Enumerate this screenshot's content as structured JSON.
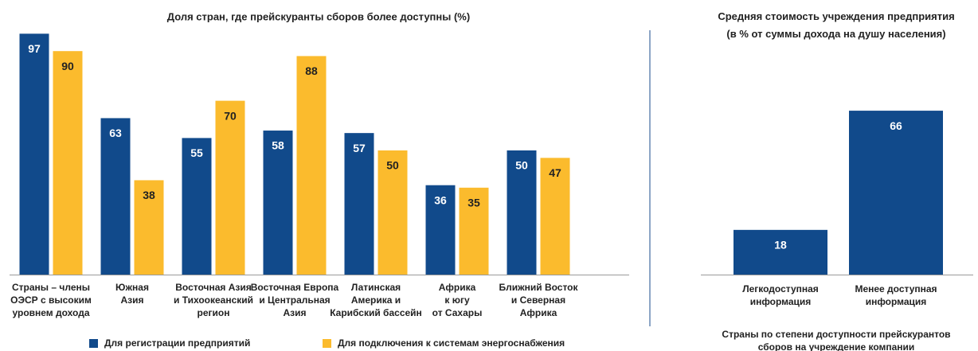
{
  "chart_data": [
    {
      "type": "bar",
      "title": "Доля стран, где прейскуранты сборов более доступны (%)",
      "categories": [
        "Страны – члены\nОЭСР с высоким\nуровнем дохода",
        "Южная\nАзия",
        "Восточная Азия\nи Тихоокеанский\nрегион",
        "Восточная Европа\nи Центральная\nАзия",
        "Латинская\nАмерика и\nКарибский бассейн",
        "Африка\nк югу\nот Сахары",
        "Ближний Восток\nи Северная\nАфрика"
      ],
      "series": [
        {
          "name": "Для регистрации предприятий",
          "color": "#114a8b",
          "values": [
            97,
            63,
            55,
            58,
            57,
            36,
            50
          ]
        },
        {
          "name": "Для подключения к системам энергоснабжения",
          "color": "#fbbb2d",
          "values": [
            90,
            38,
            70,
            88,
            50,
            35,
            47
          ]
        }
      ]
    },
    {
      "type": "bar",
      "title": "Средняя стоимость учреждения предприятия\n(в % от суммы дохода на душу населения)",
      "x_label": "Страны по степени доступности прейскурантов\nсборов на учреждение компании",
      "categories": [
        "Легкодоступная\nинформация",
        "Менее доступная\nинформация"
      ],
      "values": [
        18,
        66
      ],
      "color": "#114a8b"
    }
  ]
}
